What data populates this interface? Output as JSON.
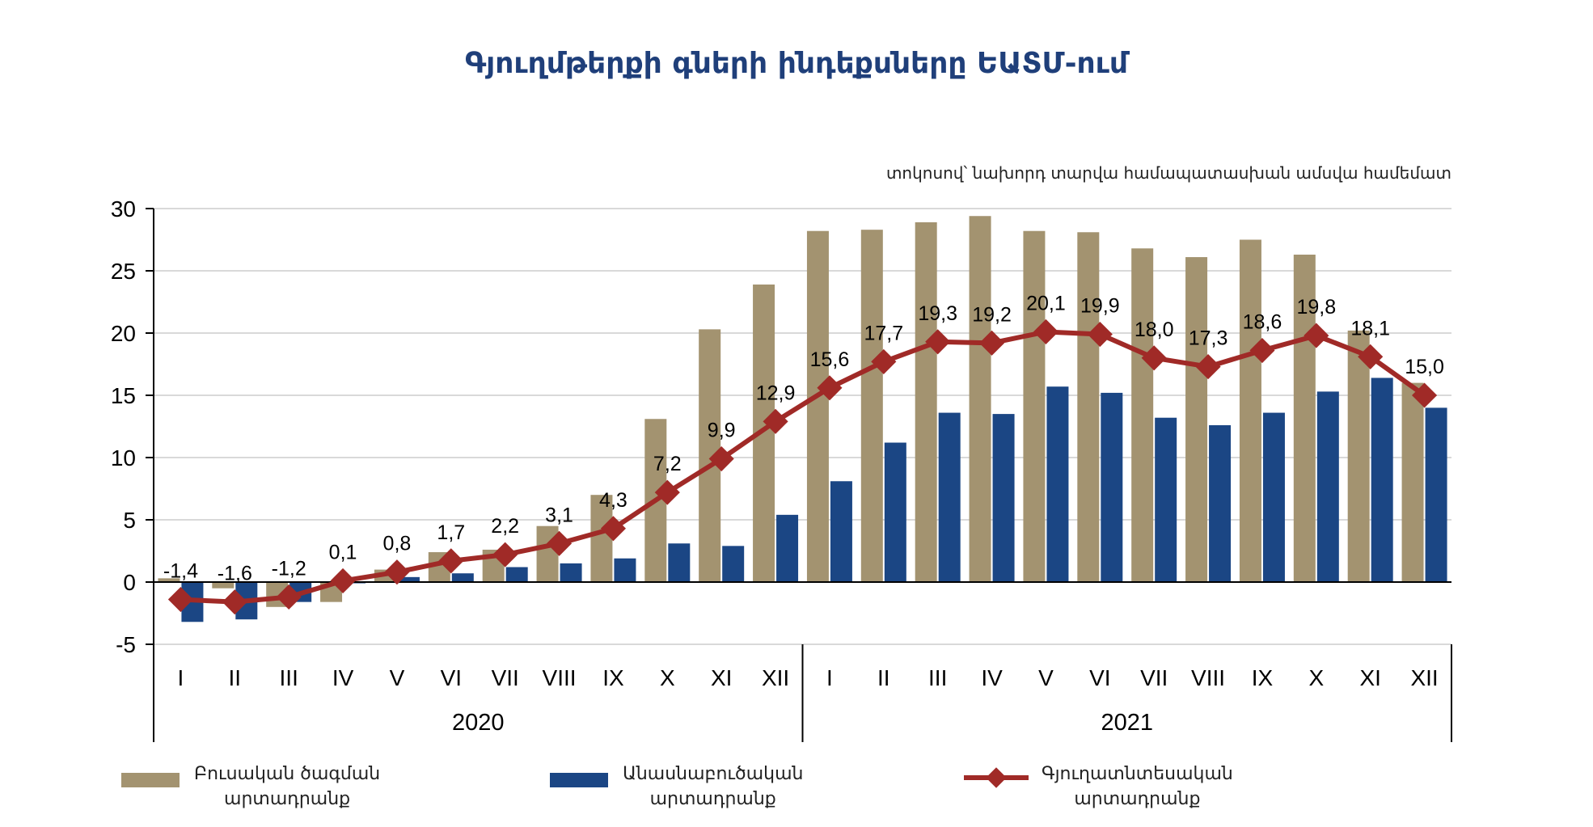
{
  "title": "Գյուղմթերքի գների ինդեքսները ԵԱՏՄ-ում",
  "subtitle": "տոկոսով՝ նախորդ տարվա համապատասխան ամսվա համեմատ",
  "chart_data": {
    "type": "bar",
    "categories": [
      "I",
      "II",
      "III",
      "IV",
      "V",
      "VI",
      "VII",
      "VIII",
      "IX",
      "X",
      "XI",
      "XII",
      "I",
      "II",
      "III",
      "IV",
      "V",
      "VI",
      "VII",
      "VIII",
      "IX",
      "X",
      "XI",
      "XII"
    ],
    "groups": [
      {
        "label": "2020",
        "count": 12
      },
      {
        "label": "2021",
        "count": 12
      }
    ],
    "ylim": [
      -5,
      30
    ],
    "yticks": [
      -5,
      0,
      5,
      10,
      15,
      20,
      25,
      30
    ],
    "grid": true,
    "legend_position": "bottom",
    "series": [
      {
        "name": "Բուսական ծագման արտադրանք",
        "type": "bar",
        "color": "#a39370",
        "values": [
          0.3,
          -0.5,
          -2.0,
          -1.6,
          1.0,
          2.4,
          2.6,
          4.5,
          7.0,
          13.1,
          20.3,
          23.9,
          28.2,
          28.3,
          28.9,
          29.4,
          28.2,
          28.1,
          26.8,
          26.1,
          27.5,
          26.3,
          20.2,
          16.0
        ]
      },
      {
        "name": "Անասնաբուծական արտադրանք",
        "type": "bar",
        "color": "#1b4684",
        "values": [
          -3.2,
          -3.0,
          -1.6,
          -0.1,
          0.4,
          0.7,
          1.2,
          1.5,
          1.9,
          3.1,
          2.9,
          5.4,
          8.1,
          11.2,
          13.6,
          13.5,
          15.7,
          15.2,
          13.2,
          12.6,
          13.6,
          15.3,
          16.4,
          14.0
        ]
      },
      {
        "name": "Գյուղատնտեսական արտադրանք",
        "type": "line",
        "color": "#a02a27",
        "values": [
          -1.4,
          -1.6,
          -1.2,
          0.1,
          0.8,
          1.7,
          2.2,
          3.1,
          4.3,
          7.2,
          9.9,
          12.9,
          15.6,
          17.7,
          19.3,
          19.2,
          20.1,
          19.9,
          18.0,
          17.3,
          18.6,
          19.8,
          18.1,
          15.0
        ],
        "labels": [
          "-1,4",
          "-1,6",
          "-1,2",
          "0,1",
          "0,8",
          "1,7",
          "2,2",
          "3,1",
          "4,3",
          "7,2",
          "9,9",
          "12,9",
          "15,6",
          "17,7",
          "19,3",
          "19,2",
          "20,1",
          "19,9",
          "18,0",
          "17,3",
          "18,6",
          "19,8",
          "18,1",
          "15,0"
        ]
      }
    ],
    "tick_labels": [
      "-5",
      "0",
      "5",
      "10",
      "15",
      "20",
      "25",
      "30"
    ]
  },
  "legend": {
    "items": [
      {
        "line1": "Բուսական ծագման",
        "line2": "արտադրանք",
        "color": "#a39370"
      },
      {
        "line1": "Անասնաբուծական",
        "line2": "արտադրանք",
        "color": "#1b4684"
      },
      {
        "line1": "Գյուղատնտեսական",
        "line2": "արտադրանք",
        "color": "#a02a27"
      }
    ]
  }
}
